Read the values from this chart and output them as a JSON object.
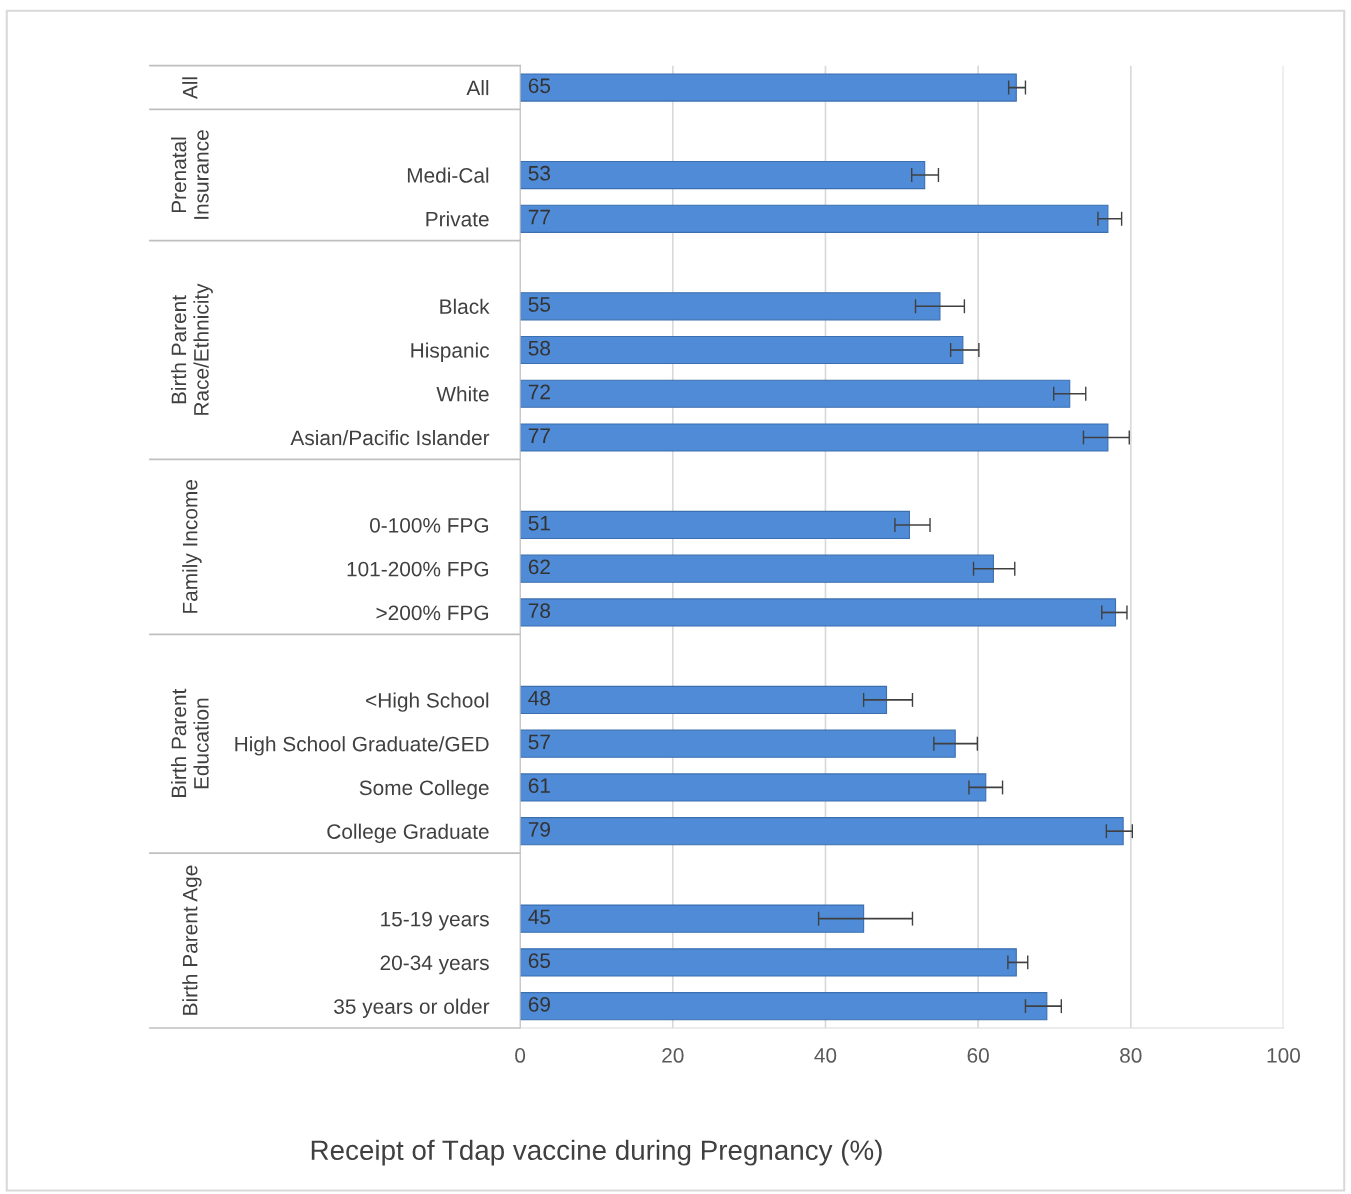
{
  "chart_data": {
    "type": "bar",
    "orientation": "horizontal",
    "xlabel": "Receipt of Tdap vaccine during Pregnancy (%)",
    "categories": [
      "All",
      null,
      "Medi-Cal",
      "Private",
      null,
      "Black",
      "Hispanic",
      "White",
      "Asian/Pacific Islander",
      null,
      "0-100% FPG",
      "101-200% FPG",
      ">200% FPG",
      null,
      "<High School",
      "High School Graduate/GED",
      "Some College",
      "College Graduate",
      null,
      "15-19 years",
      "20-34 years",
      "35 years or older"
    ],
    "values": [
      65,
      null,
      53,
      77,
      null,
      55,
      58,
      72,
      77,
      null,
      51,
      62,
      78,
      null,
      48,
      57,
      61,
      79,
      null,
      45,
      65,
      69
    ],
    "errors": [
      [
        64.0,
        66.2
      ],
      null,
      [
        51.3,
        54.8
      ],
      [
        75.7,
        78.8
      ],
      null,
      [
        51.8,
        58.2
      ],
      [
        56.4,
        60.1
      ],
      [
        69.9,
        74.1
      ],
      [
        73.8,
        79.8
      ],
      null,
      [
        49.1,
        53.7
      ],
      [
        59.4,
        64.8
      ],
      [
        76.2,
        79.5
      ],
      null,
      [
        45.0,
        51.4
      ],
      [
        54.2,
        59.9
      ],
      [
        58.8,
        63.2
      ],
      [
        76.8,
        80.2
      ],
      null,
      [
        39.1,
        51.4
      ],
      [
        63.9,
        66.5
      ],
      [
        66.2,
        70.9
      ]
    ],
    "color": "#4f8bd6",
    "data_labels": true,
    "annotations": [
      "All",
      "Prenatal\nInsurance",
      "Birth Parent\nRace/Ethnicity",
      "Family Income",
      "Birth Parent\nEducation",
      "Birth Parent Age"
    ],
    "xlim": [
      0,
      100
    ],
    "xticks": [
      0,
      20,
      40,
      60,
      80,
      100
    ],
    "grid": "x",
    "legend": false
  }
}
